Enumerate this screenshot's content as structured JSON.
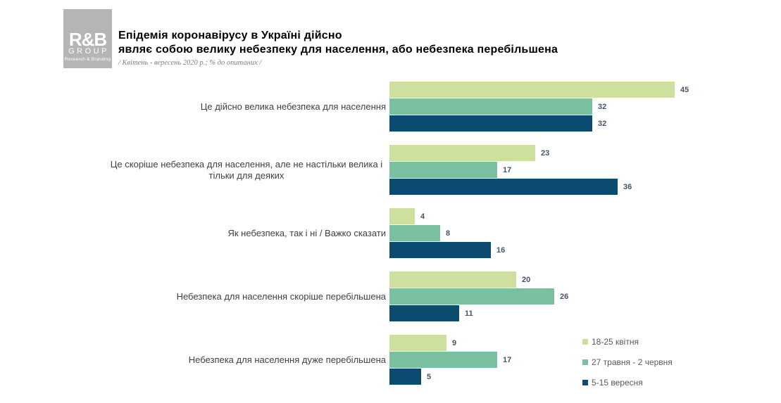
{
  "logo": {
    "line1": "R&B",
    "line2": "GROUP",
    "line3": "Research & Branding"
  },
  "header": {
    "title_line1": "Епідемія коронавірусу в Україні дійсно",
    "title_line2": "являє собою велику небезпеку для населення, або небезпека перебільшена",
    "subtitle": "/ Квітень - вересень 2020 р.; % до опитаних /"
  },
  "chart_data": {
    "type": "bar",
    "orientation": "horizontal",
    "title": "Епідемія коронавірусу в Україні дійсно являє собою велику небезпеку для населення, або небезпека перебільшена",
    "subtitle": "/ Квітень - вересень 2020 р.; % до опитаних /",
    "unit": "% до опитаних",
    "categories": [
      "Це дійсно велика небезпека для населення",
      "Це скоріше небезпека для населення, але не настільки велика і тільки для деяких",
      "Як небезпека, так і ні / Важко сказати",
      "Небезпека для населення скоріше перебільшена",
      "Небезпека для населення дуже перебільшена"
    ],
    "series": [
      {
        "name": "18-25 квітня",
        "color": "#cde09f",
        "values": [
          45,
          23,
          4,
          20,
          9
        ]
      },
      {
        "name": "27 травня - 2 червня",
        "color": "#7abfa0",
        "values": [
          32,
          17,
          8,
          26,
          17
        ]
      },
      {
        "name": "5-15 вересня",
        "color": "#0b4b70",
        "values": [
          32,
          36,
          16,
          11,
          5
        ]
      }
    ],
    "xlim": [
      0,
      50
    ],
    "grid": false,
    "legend_position": "bottom-right",
    "value_labels": true,
    "value_label_color": "#44546a"
  }
}
